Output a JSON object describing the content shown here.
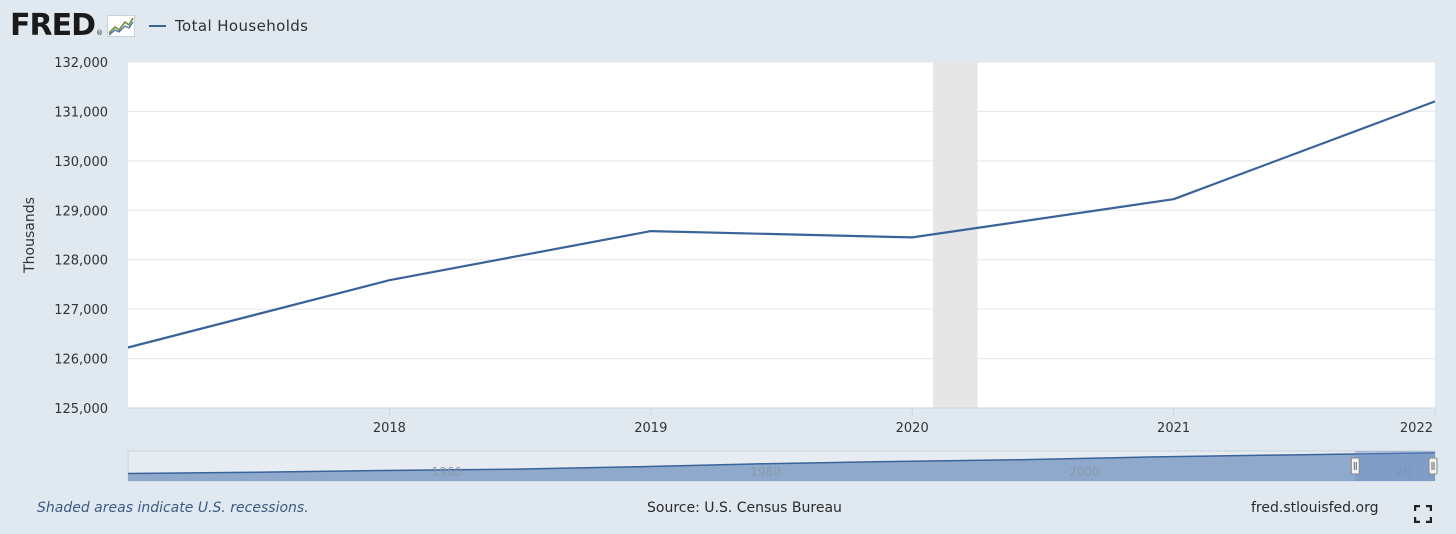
{
  "header": {
    "logo_text": "FRED",
    "logo_reg": "®",
    "series_name": "Total Households"
  },
  "colors": {
    "background": "#e1e9f0",
    "series": "#3a6399",
    "recession": "#e6e6e6",
    "navigator_fill": "#7f9dc6"
  },
  "chart_data": {
    "type": "line",
    "title": "",
    "xlabel": "",
    "ylabel": "Thousands",
    "x": [
      2017,
      2018,
      2019,
      2020,
      2021,
      2022
    ],
    "series": [
      {
        "name": "Total Households",
        "values": [
          126224,
          127586,
          128579,
          128451,
          129224,
          131202
        ]
      }
    ],
    "xlim": [
      2017,
      2022
    ],
    "ylim": [
      125000,
      132000
    ],
    "y_ticks": [
      125000,
      126000,
      127000,
      128000,
      129000,
      130000,
      131000,
      132000
    ],
    "y_tick_labels": [
      "125,000",
      "126,000",
      "127,000",
      "128,000",
      "129,000",
      "130,000",
      "131,000",
      "132,000"
    ],
    "x_ticks": [
      2018,
      2019,
      2020,
      2021,
      2022
    ],
    "x_tick_labels": [
      "2018",
      "2019",
      "2020",
      "2021",
      "2022"
    ],
    "recessions": [
      [
        2020.08,
        2020.25
      ]
    ],
    "grid": true,
    "legend": "top-left"
  },
  "navigator": {
    "x_range": [
      1940,
      2022
    ],
    "labels": [
      {
        "x": 1960,
        "text": "1960"
      },
      {
        "x": 1980,
        "text": "1980"
      },
      {
        "x": 2000,
        "text": "2000"
      },
      {
        "x": 2020,
        "text": "20"
      }
    ],
    "selection": [
      2017,
      2022
    ],
    "series_x": [
      1940,
      1948,
      1956,
      1964,
      1972,
      1980,
      1988,
      1996,
      2004,
      2012,
      2022
    ],
    "series_values": [
      34900,
      40500,
      48900,
      55000,
      66700,
      80700,
      91100,
      99600,
      112000,
      121100,
      131202
    ],
    "ylim": [
      0,
      140000
    ]
  },
  "footer": {
    "recession_note": "Shaded areas indicate U.S. recessions.",
    "source": "Source: U.S. Census Bureau",
    "site": "fred.stlouisfed.org"
  }
}
